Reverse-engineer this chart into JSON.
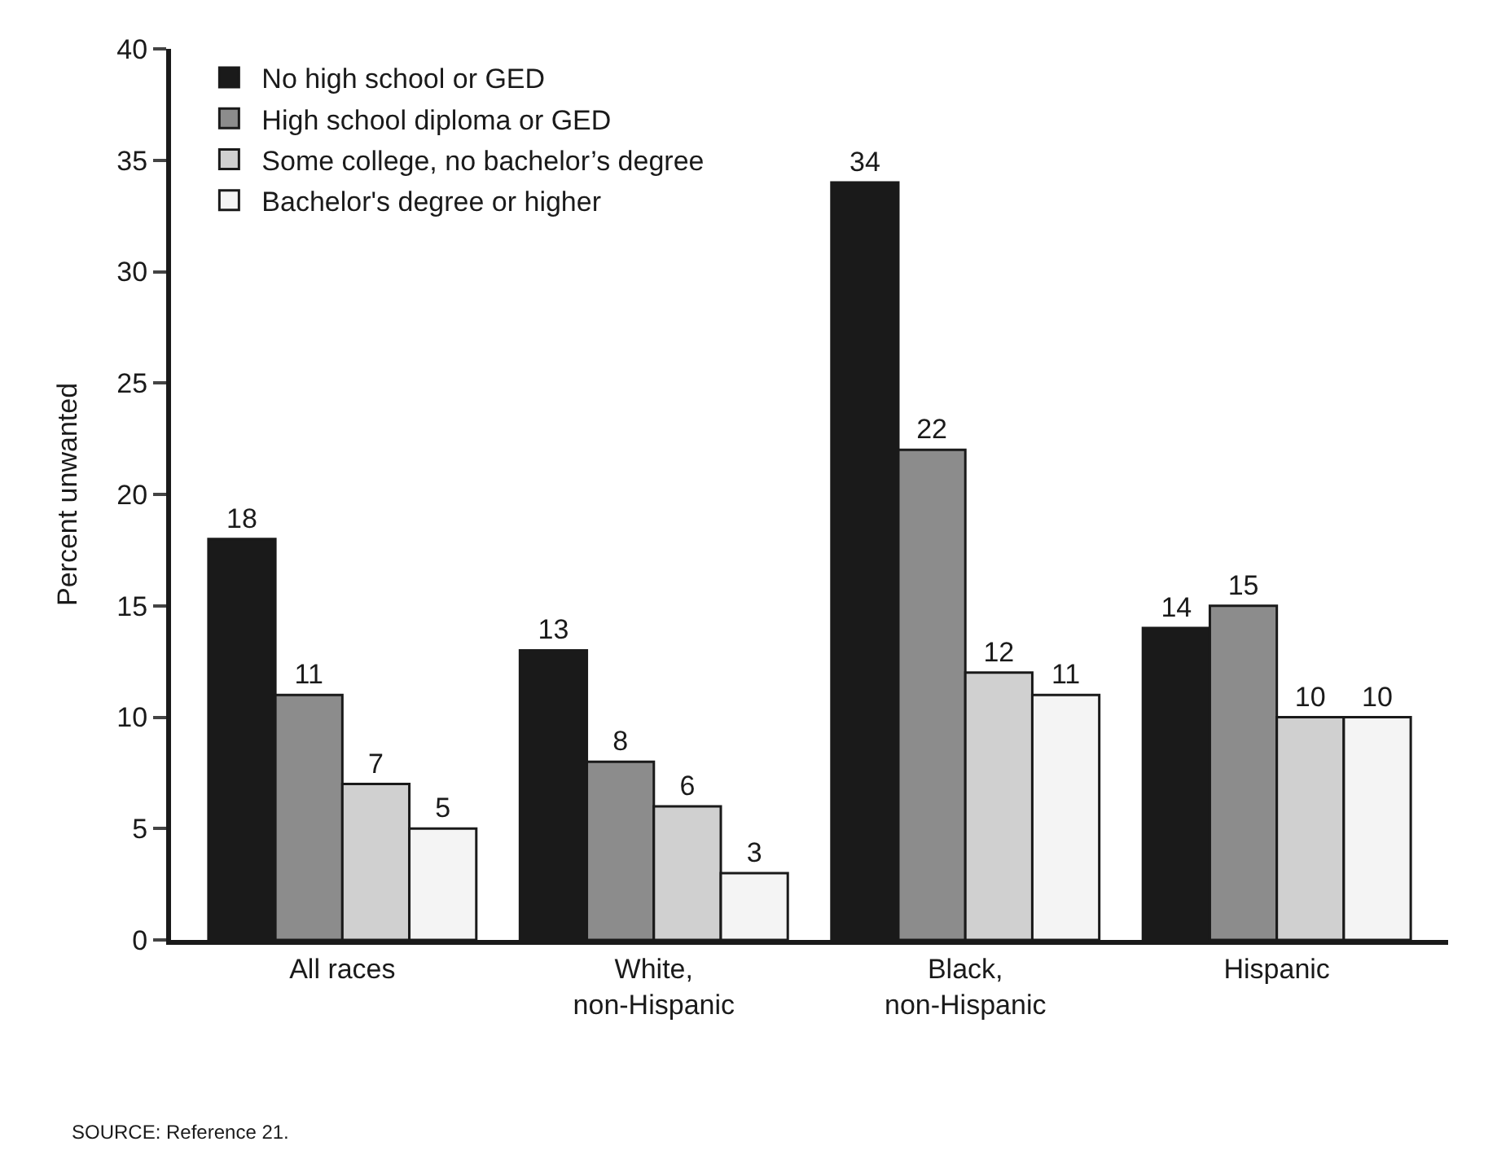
{
  "chart_data": {
    "type": "bar",
    "ylabel": "Percent unwanted",
    "categories": [
      "All races",
      "White, non-Hispanic",
      "Black, non-Hispanic",
      "Hispanic"
    ],
    "series": [
      {
        "name": "No high school or GED",
        "color": "#1a1a1a",
        "values": [
          18,
          13,
          34,
          14
        ]
      },
      {
        "name": "High school diploma or GED",
        "color": "#8c8c8c",
        "values": [
          11,
          8,
          22,
          15
        ]
      },
      {
        "name": "Some college, no bachelor’s degree",
        "color": "#d0d0d0",
        "values": [
          7,
          6,
          12,
          10
        ]
      },
      {
        "name": "Bachelor's degree or higher",
        "color": "#f4f4f4",
        "values": [
          5,
          3,
          11,
          10
        ]
      }
    ],
    "ylim": [
      0,
      40
    ],
    "yticks": [
      0,
      5,
      10,
      15,
      20,
      25,
      30,
      35,
      40
    ],
    "grid": false,
    "legend": "top",
    "data_labels": true,
    "annotations": [
      "SOURCE: Reference 21."
    ]
  }
}
